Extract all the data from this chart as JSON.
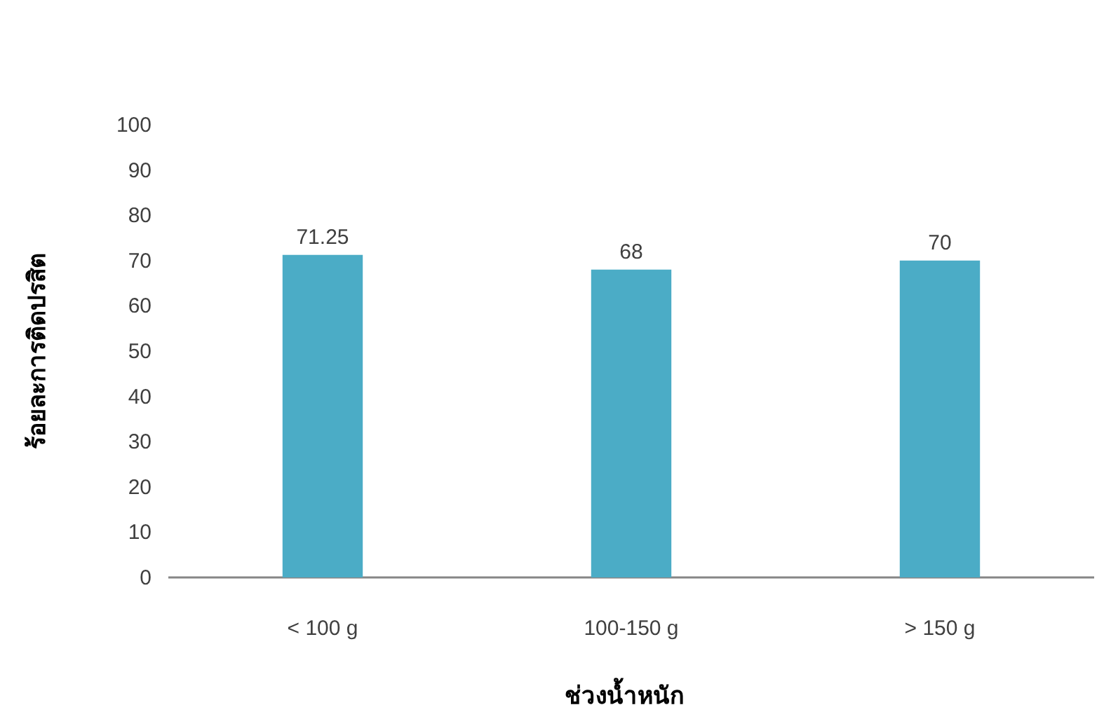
{
  "chart_data": {
    "type": "bar",
    "xlabel": "ช่วงน้ำหนัก",
    "ylabel": "ร้อยละการติดปรสิต",
    "categories": [
      "< 100 g",
      "100-150 g",
      "> 150 g"
    ],
    "values": [
      71.25,
      68,
      70
    ],
    "color": "#4bacc6",
    "ylim": [
      0,
      100
    ],
    "yticks": [
      0,
      10,
      20,
      30,
      40,
      50,
      60,
      70,
      80,
      90,
      100
    ],
    "grid": false,
    "data_labels": true
  }
}
